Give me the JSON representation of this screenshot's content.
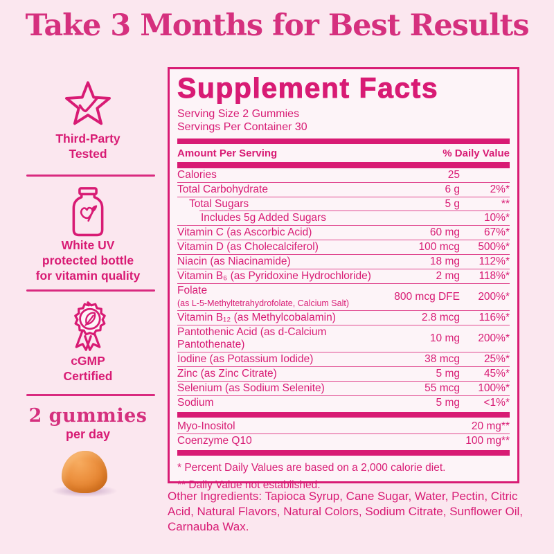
{
  "page": {
    "title": "Take 3 Months for Best Results"
  },
  "colors": {
    "accent_pink": "#D81B74",
    "title_magenta": "#D5307E",
    "background_pink": "#FBE7EF",
    "panel_background": "#FDF4F8",
    "gummy_orange": "#E98C3B"
  },
  "sidebar": {
    "sections": [
      {
        "icon": "star-check-icon",
        "label": "Third-Party\nTested"
      },
      {
        "icon": "bottle-icon",
        "label": "White UV\nprotected bottle\nfor vitamin quality"
      },
      {
        "icon": "ribbon-badge-icon",
        "label": "cGMP\nCertified"
      },
      {
        "icon": "gummy-image",
        "headline": "2 gummies",
        "subline": "per day"
      }
    ]
  },
  "facts": {
    "title": "Supplement Facts",
    "serving_size": "Serving Size 2 Gummies",
    "servings_per_container": "Servings Per Container 30",
    "col_head_left": "Amount Per Serving",
    "col_head_right": "% Daily Value",
    "rows": [
      {
        "name": "Calories",
        "amount": "25",
        "dv": "",
        "indent": 0
      },
      {
        "name": "Total Carbohydrate",
        "amount": "6 g",
        "dv": "2%*",
        "indent": 0
      },
      {
        "name": "Total Sugars",
        "amount": "5 g",
        "dv": "**",
        "indent": 1
      },
      {
        "name": "Includes 5g Added Sugars",
        "amount": "",
        "dv": "10%*",
        "indent": 2
      },
      {
        "name": "Vitamin C (as Ascorbic Acid)",
        "amount": "60 mg",
        "dv": "67%*",
        "indent": 0
      },
      {
        "name": "Vitamin D (as Cholecalciferol)",
        "amount": "100 mcg",
        "dv": "500%*",
        "indent": 0
      },
      {
        "name": "Niacin (as Niacinamide)",
        "amount": "18 mg",
        "dv": "112%*",
        "indent": 0
      },
      {
        "name": "Vitamin B₆ (as Pyridoxine Hydrochloride)",
        "amount": "2 mg",
        "dv": "118%*",
        "indent": 0
      },
      {
        "name": "Folate",
        "sub_name": "(as L-5-Methyltetrahydrofolate, Calcium Salt)",
        "amount": "800 mcg DFE",
        "dv": "200%*",
        "indent": 0
      },
      {
        "name": "Vitamin B₁₂ (as Methylcobalamin)",
        "amount": "2.8 mcg",
        "dv": "116%*",
        "indent": 0
      },
      {
        "name": "Pantothenic Acid (as d-Calcium Pantothenate)",
        "amount": "10 mg",
        "dv": "200%*",
        "indent": 0
      },
      {
        "name": "Iodine (as Potassium Iodide)",
        "amount": "38 mcg",
        "dv": "25%*",
        "indent": 0
      },
      {
        "name": "Zinc (as Zinc Citrate)",
        "amount": "5 mg",
        "dv": "45%*",
        "indent": 0
      },
      {
        "name": "Selenium (as Sodium Selenite)",
        "amount": "55 mcg",
        "dv": "100%*",
        "indent": 0
      },
      {
        "name": "Sodium",
        "amount": "5 mg",
        "dv": "<1%*",
        "indent": 0
      }
    ],
    "extra_rows": [
      {
        "name": "Myo-Inositol",
        "amount": "20 mg**"
      },
      {
        "name": "Coenzyme Q10",
        "amount": "100 mg**"
      }
    ],
    "footnotes": [
      "* Percent Daily Values are based on a 2,000 calorie diet.",
      "** Daily Value not established."
    ]
  },
  "other_ingredients": "Other Ingredients: Tapioca Syrup, Cane Sugar, Water, Pectin, Citric Acid, Natural Flavors, Natural Colors, Sodium Citrate, Sunflower Oil, Carnauba Wax."
}
